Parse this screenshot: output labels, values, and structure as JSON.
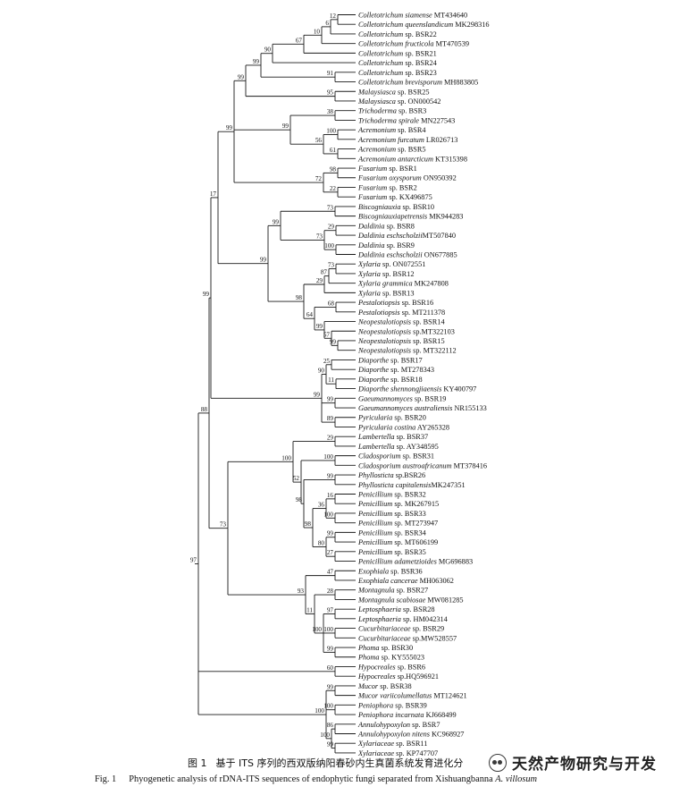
{
  "tree": {
    "taxa": [
      [
        [
          "Colletotrichum siamense",
          " MT434640"
        ]
      ],
      [
        [
          "Colletotrichum queenslandicum",
          " MK298316"
        ]
      ],
      [
        [
          "Colletotrichum",
          " sp. BSR22"
        ]
      ],
      [
        [
          "Colletotrichum fructicola",
          " MT470539"
        ]
      ],
      [
        [
          "Colletotrichum",
          " sp. BSR21"
        ]
      ],
      [
        [
          "Colletotrichum",
          " sp. BSR24"
        ]
      ],
      [
        [
          "Colletotrichum",
          " sp. BSR23"
        ]
      ],
      [
        [
          "Colletotrichum brevisporum",
          " MH883805"
        ]
      ],
      [
        [
          "Malaysiasca",
          " sp. BSR25"
        ]
      ],
      [
        [
          "Malaysiasca",
          " sp. ON000542"
        ]
      ],
      [
        [
          "Trichoderma",
          " sp. BSR3"
        ]
      ],
      [
        [
          "Trichoderma spirale",
          " MN227543"
        ]
      ],
      [
        [
          "Acremonium",
          " sp. BSR4"
        ]
      ],
      [
        [
          "Acremonium furcatum",
          " LR026713"
        ]
      ],
      [
        [
          "Acremonium",
          " sp. BSR5"
        ]
      ],
      [
        [
          "Acremonium antarcticum",
          " KT315398"
        ]
      ],
      [
        [
          "Fusarium",
          " sp. BSR1"
        ]
      ],
      [
        [
          "Fusarium oxysporum",
          " ON950392"
        ]
      ],
      [
        [
          "Fusarium",
          " sp. BSR2"
        ]
      ],
      [
        [
          "Fusarium",
          " sp. KX496875"
        ]
      ],
      [
        [
          "Biscogniauxia",
          " sp. BSR10"
        ]
      ],
      [
        [
          "Biscogniauxiapetrensis",
          " MK944283"
        ]
      ],
      [
        [
          "Daldinia",
          " sp. BSR8"
        ]
      ],
      [
        [
          "Daldinia eschscholzii",
          "MT507840"
        ]
      ],
      [
        [
          "Daldinia",
          " sp. BSR9"
        ]
      ],
      [
        [
          "Daldinia eschscholzii",
          " ON677885"
        ]
      ],
      [
        [
          "Xylaria",
          " sp. ON072551"
        ]
      ],
      [
        [
          "Xylaria",
          " sp. BSR12"
        ]
      ],
      [
        [
          "Xylaria grammica",
          " MK247808"
        ]
      ],
      [
        [
          "Xylaria",
          " sp. BSR13"
        ]
      ],
      [
        [
          "Pestalotiopsis",
          " sp. BSR16"
        ]
      ],
      [
        [
          "Pestalotiopsis",
          " sp. MT211378"
        ]
      ],
      [
        [
          "Neopestalotiopsis",
          " sp. BSR14"
        ]
      ],
      [
        [
          "Neopestalotiopsis",
          " sp.MT322103"
        ]
      ],
      [
        [
          "Neopestalotiopsis",
          " sp. BSR15"
        ]
      ],
      [
        [
          "Neopestalotiopsis",
          " sp. MT322112"
        ]
      ],
      [
        [
          "Diaporthe",
          " sp. BSR17"
        ]
      ],
      [
        [
          "Diaporthe",
          " sp. MT278343"
        ]
      ],
      [
        [
          "Diaporthe",
          " sp. BSR18"
        ]
      ],
      [
        [
          "Diaporthe shennongjiaensis",
          " KY400797"
        ]
      ],
      [
        [
          "Gaeumannomyces",
          " sp. BSR19"
        ]
      ],
      [
        [
          "Gaeumannomyces australiensis",
          " NR155133"
        ]
      ],
      [
        [
          "Pyricularia",
          " sp. BSR20"
        ]
      ],
      [
        [
          "Pyricularia costina",
          " AY265328"
        ]
      ],
      [
        [
          "Lambertella",
          " sp. BSR37"
        ]
      ],
      [
        [
          "Lambertella",
          " sp. AY348595"
        ]
      ],
      [
        [
          "Cladosporium",
          " sp. BSR31"
        ]
      ],
      [
        [
          "Cladosporium austroafricanum",
          " MT378416"
        ]
      ],
      [
        [
          "Phyllosticta",
          " sp.BSR26"
        ]
      ],
      [
        [
          "Phyllosticta capitalensis",
          "MK247351"
        ]
      ],
      [
        [
          "Penicillium",
          " sp. BSR32"
        ]
      ],
      [
        [
          "Penicillium",
          " sp. MK267915"
        ]
      ],
      [
        [
          "Penicillium",
          " sp. BSR33"
        ]
      ],
      [
        [
          "Penicillium",
          " sp. MT273947"
        ]
      ],
      [
        [
          "Penicillium",
          " sp. BSR34"
        ]
      ],
      [
        [
          "Penicillium",
          " sp. MT606199"
        ]
      ],
      [
        [
          "Penicillium",
          " sp. BSR35"
        ]
      ],
      [
        [
          "Penicillium adametzioides",
          " MG696883"
        ]
      ],
      [
        [
          "Exophiala",
          " sp. BSR36"
        ]
      ],
      [
        [
          "Exophiala cancerae",
          " MH063062"
        ]
      ],
      [
        [
          "Montagnula",
          " sp. BSR27"
        ]
      ],
      [
        [
          "Montagnula scabiosae",
          " MW081285"
        ]
      ],
      [
        [
          "Leptosphaeria",
          " sp. BSR28"
        ]
      ],
      [
        [
          "Leptosphaeria",
          " sp. HM042314"
        ]
      ],
      [
        [
          "Cucurbitariaceae",
          " sp. BSR29"
        ]
      ],
      [
        [
          "Cucurbitariaceae",
          " sp.MW528557"
        ]
      ],
      [
        [
          "Phoma",
          " sp. BSR30"
        ]
      ],
      [
        [
          "Phoma",
          " sp. KY555023"
        ]
      ],
      [
        [
          "Hypocreales",
          " sp. BSR6"
        ]
      ],
      [
        [
          "Hypocreales",
          " sp.HQ596921"
        ]
      ],
      [
        [
          "Mucor",
          " sp. BSR38"
        ]
      ],
      [
        [
          "Mucor variicolumellatus",
          " MT124621"
        ]
      ],
      [
        [
          "Peniophora",
          " sp. BSR39"
        ]
      ],
      [
        [
          "Peniophora incarnata",
          " KJ668499"
        ]
      ],
      [
        [
          "Annulohypoxylon",
          " sp. BSR7"
        ]
      ],
      [
        [
          "Annulohypoxylon nitens",
          " KC968927"
        ]
      ],
      [
        [
          "Xylariaceae",
          " sp. BSR11"
        ]
      ],
      [
        [
          "Xylariaceae",
          " sp. KP747707"
        ]
      ]
    ],
    "supports": [
      "12",
      "6",
      "10",
      "67",
      "90",
      "91",
      "99",
      "95",
      "99",
      "38",
      "100",
      "61",
      "56",
      "99",
      "98",
      "22",
      "72",
      "99",
      "73",
      "29",
      "100",
      "73",
      "99",
      "73",
      "87",
      "29",
      "68",
      "99",
      "57",
      "99",
      "64",
      "98",
      "99",
      "17",
      "25",
      "11",
      "90",
      "99",
      "89",
      "99",
      "99",
      "29",
      "100",
      "99",
      "16",
      "100",
      "36",
      "99",
      "27",
      "80",
      "98",
      "98",
      "52",
      "100",
      "47",
      "28",
      "97",
      "100",
      "99",
      "100",
      "11",
      "93",
      "73",
      "88",
      "60",
      "99",
      "100",
      "86",
      "99",
      "100",
      "100",
      "97"
    ]
  },
  "caption": {
    "cn_label": "图 1",
    "cn_text": "基于 ITS 序列的西双版纳阳春砂内生真菌系统发育进化分",
    "en_label": "Fig. 1",
    "en_text": "Phyogenetic analysis of rDNA-ITS sequences of endophytic fungi separated from Xishuangbanna ",
    "en_italic": "A. villosum"
  },
  "watermark": {
    "icon": "wechat-icon",
    "text": "天然产物研究与开发"
  }
}
